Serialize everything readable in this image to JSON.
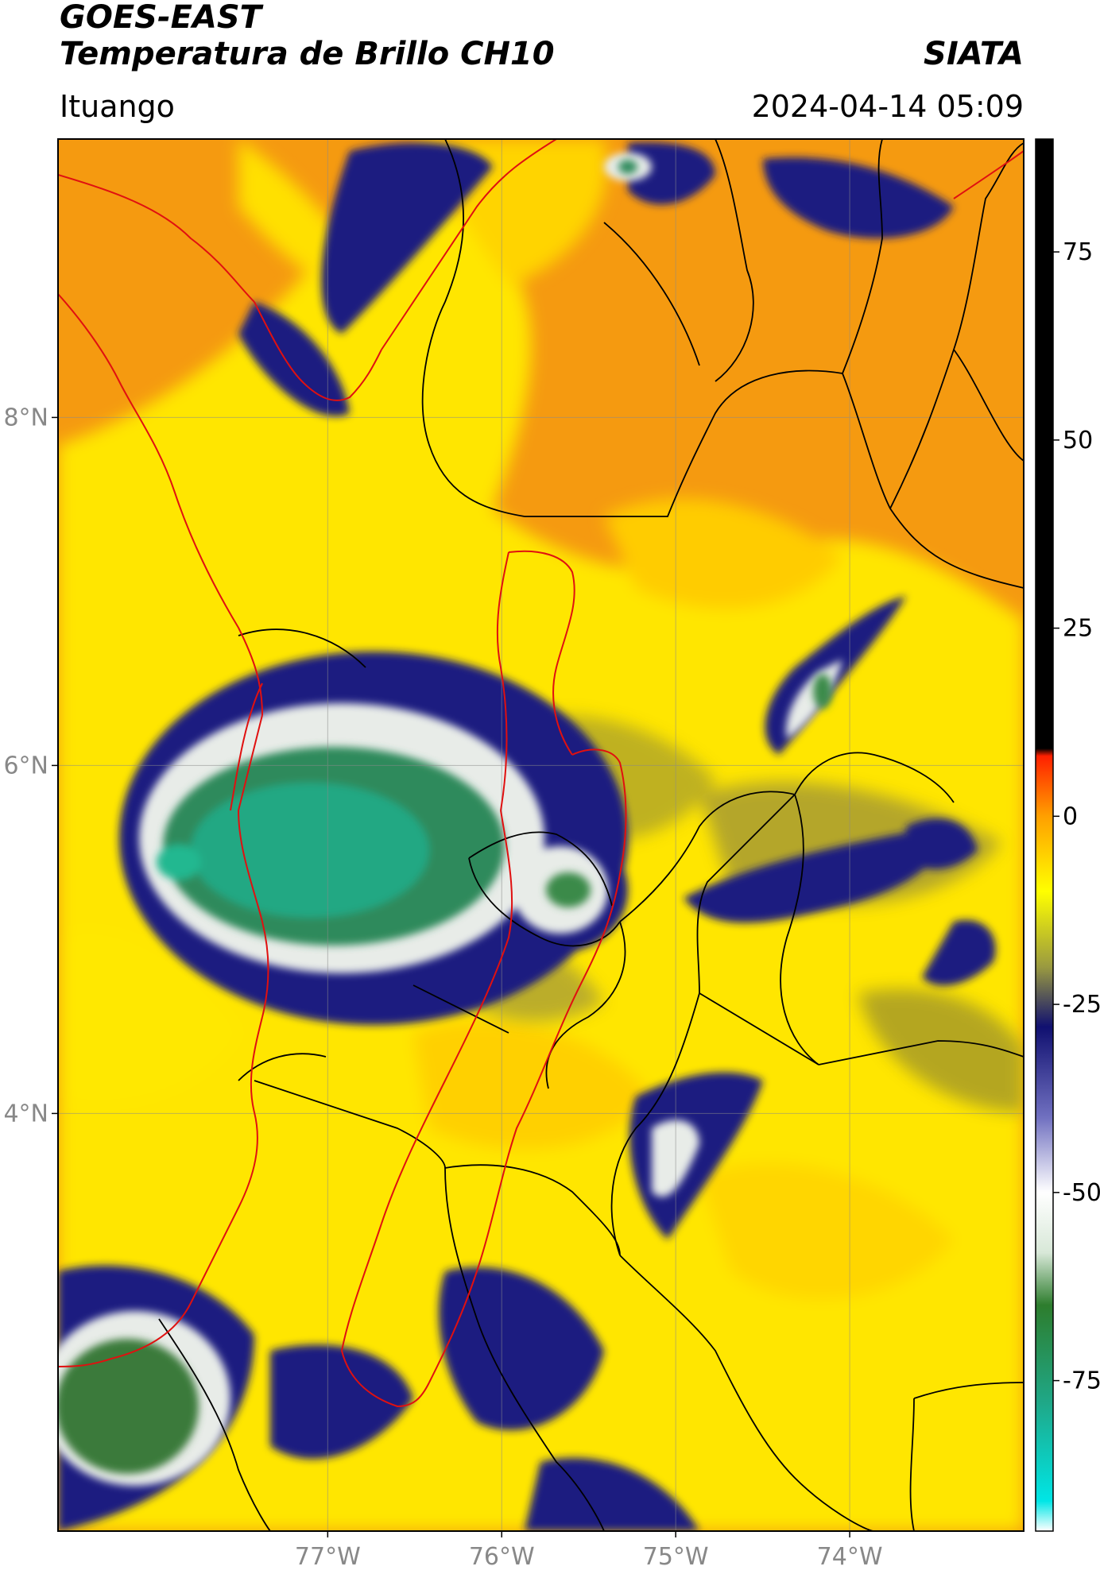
{
  "header": {
    "title_line1": "GOES-EAST",
    "title_line2": "Temperatura de Brillo CH10",
    "brand": "SIATA",
    "location": "Ituango",
    "datetime": "2024-04-14 05:09"
  },
  "map": {
    "lat_ticks": [
      {
        "value": 8,
        "label": "8°N"
      },
      {
        "value": 6,
        "label": "6°N"
      },
      {
        "value": 4,
        "label": "4°N"
      }
    ],
    "lon_ticks": [
      {
        "value": -77,
        "label": "77°W"
      },
      {
        "value": -76,
        "label": "76°W"
      },
      {
        "value": -75,
        "label": "75°W"
      },
      {
        "value": -74,
        "label": "74°W"
      }
    ],
    "lat_range": [
      1.6,
      9.6
    ],
    "lon_range": [
      -78.55,
      -73.0
    ],
    "grid": true,
    "colors": {
      "warm": "#f08a00",
      "mid": "#ffe800",
      "cold_band": "#1a1f80",
      "very_cold": "#2e8a5c",
      "coldest": "#20c4a0",
      "country_border": "#e01010",
      "department_border": "#000000"
    }
  },
  "colorbar": {
    "label_ticks": [
      {
        "value": 75,
        "label": "75"
      },
      {
        "value": 50,
        "label": "50"
      },
      {
        "value": 25,
        "label": "25"
      },
      {
        "value": 0,
        "label": "0"
      },
      {
        "value": -25,
        "label": "-25"
      },
      {
        "value": -50,
        "label": "-50"
      },
      {
        "value": -75,
        "label": "-75"
      }
    ],
    "range": [
      -95,
      90
    ],
    "stops": [
      {
        "value": -95,
        "color": "#ffffff"
      },
      {
        "value": -91,
        "color": "#00e6e6"
      },
      {
        "value": -78,
        "color": "#1fa888"
      },
      {
        "value": -65,
        "color": "#2d7d2d"
      },
      {
        "value": -58,
        "color": "#d8e8d8"
      },
      {
        "value": -50,
        "color": "#ffffff"
      },
      {
        "value": -40,
        "color": "#7070c0"
      },
      {
        "value": -28,
        "color": "#101070"
      },
      {
        "value": -20,
        "color": "#9a9a40"
      },
      {
        "value": -10,
        "color": "#ffff00"
      },
      {
        "value": 0,
        "color": "#ffa000"
      },
      {
        "value": 8,
        "color": "#ff2000"
      },
      {
        "value": 9,
        "color": "#000000"
      },
      {
        "value": 90,
        "color": "#000000"
      }
    ]
  }
}
